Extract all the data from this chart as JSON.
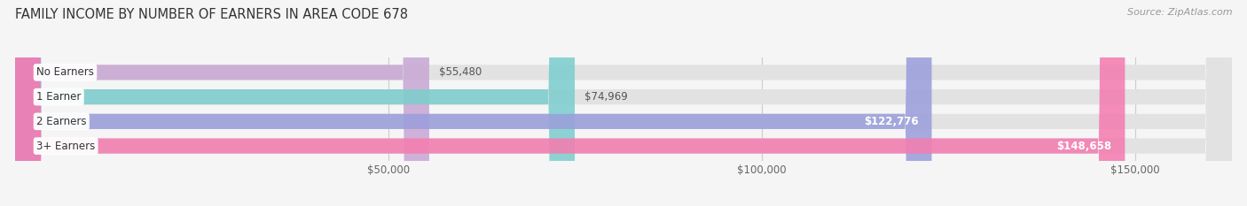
{
  "title": "FAMILY INCOME BY NUMBER OF EARNERS IN AREA CODE 678",
  "source": "Source: ZipAtlas.com",
  "categories": [
    "No Earners",
    "1 Earner",
    "2 Earners",
    "3+ Earners"
  ],
  "values": [
    55480,
    74969,
    122776,
    148658
  ],
  "labels": [
    "$55,480",
    "$74,969",
    "$122,776",
    "$148,658"
  ],
  "bar_colors": [
    "#c9a8d4",
    "#7ecece",
    "#9b9fdb",
    "#f47db0"
  ],
  "background_color": "#f5f5f5",
  "xlim": [
    0,
    163000
  ],
  "xtick_values": [
    50000,
    100000,
    150000
  ],
  "xtick_labels": [
    "$50,000",
    "$100,000",
    "$150,000"
  ],
  "title_fontsize": 10.5,
  "source_fontsize": 8,
  "label_fontsize": 8.5,
  "category_fontsize": 8.5,
  "bar_height": 0.62,
  "label_threshold": 80000
}
